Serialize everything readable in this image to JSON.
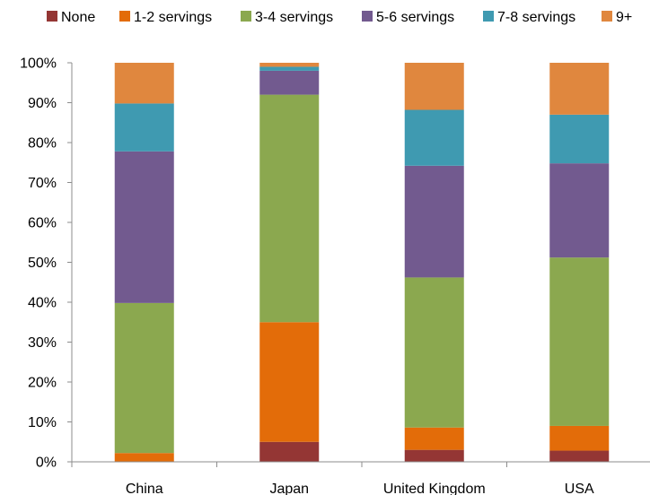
{
  "chart_data": {
    "type": "bar",
    "stacked": true,
    "percent": true,
    "categories": [
      "China",
      "Japan",
      "United Kingdom",
      "USA"
    ],
    "series": [
      {
        "name": "None",
        "color": "#943634",
        "values": [
          0.0,
          5.0,
          3.0,
          2.8
        ]
      },
      {
        "name": "1-2 servings",
        "color": "#E36C09",
        "values": [
          2.2,
          30.0,
          5.6,
          6.2
        ]
      },
      {
        "name": "3-4 servings",
        "color": "#8BA84F",
        "values": [
          37.6,
          57.0,
          37.6,
          42.2
        ]
      },
      {
        "name": "5-6 servings",
        "color": "#725A8F",
        "values": [
          38.0,
          6.0,
          28.0,
          23.6
        ]
      },
      {
        "name": "7-8 servings",
        "color": "#3F9AB1",
        "values": [
          12.0,
          1.0,
          14.0,
          12.2
        ]
      },
      {
        "name": "9+",
        "color": "#E0873E",
        "values": [
          10.2,
          1.0,
          11.8,
          13.0
        ]
      }
    ],
    "ylim": [
      0,
      100
    ],
    "yticks": [
      "0%",
      "10%",
      "20%",
      "30%",
      "40%",
      "50%",
      "60%",
      "70%",
      "80%",
      "90%",
      "100%"
    ],
    "grid": false,
    "legend_position": "top"
  }
}
